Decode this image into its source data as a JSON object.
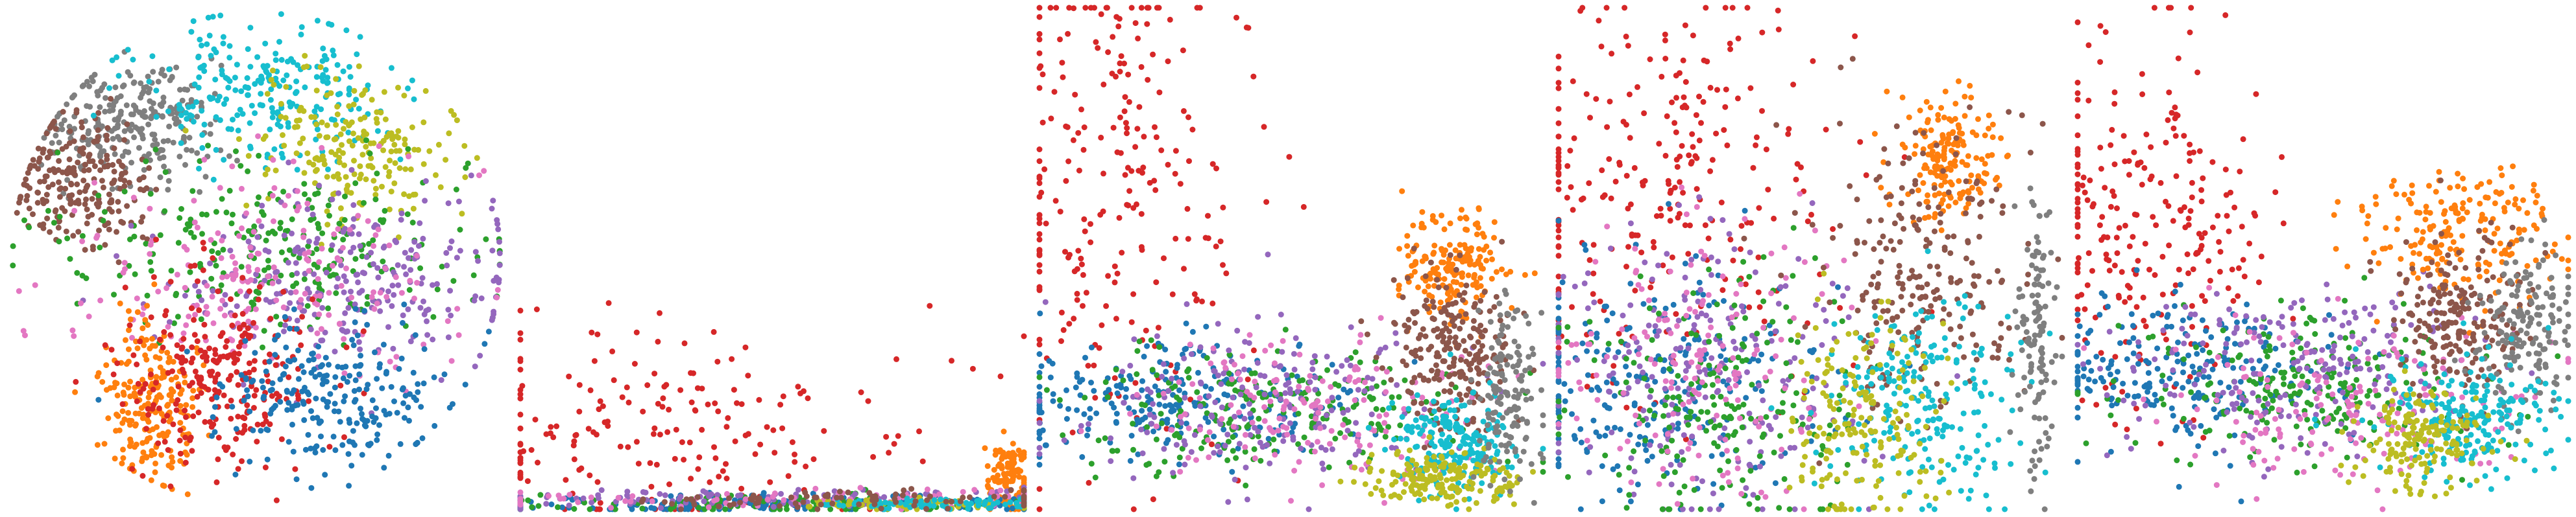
{
  "palette": {
    "blue": "#1f77b4",
    "orange": "#ff7f0e",
    "green": "#2ca02c",
    "red": "#d62728",
    "purple": "#9467bd",
    "brown": "#8c564b",
    "pink": "#e377c2",
    "gray": "#7f7f7f",
    "olive": "#bcbd22",
    "cyan": "#17becf"
  },
  "chart_data": [
    {
      "type": "scatter",
      "panel": "1",
      "axes_visible": false,
      "grid": false,
      "legend": "none",
      "xlim": [
        -1,
        1
      ],
      "ylim": [
        -1,
        1
      ],
      "series": [
        {
          "color": "#7f7f7f",
          "center": [
            -0.5,
            0.55
          ],
          "spread": [
            0.18,
            0.12
          ],
          "n": 260
        },
        {
          "color": "#8c564b",
          "center": [
            -0.72,
            0.3
          ],
          "spread": [
            0.14,
            0.12
          ],
          "n": 220
        },
        {
          "color": "#17becf",
          "center": [
            0.05,
            0.68
          ],
          "spread": [
            0.25,
            0.14
          ],
          "n": 240
        },
        {
          "color": "#bcbd22",
          "center": [
            0.4,
            0.45
          ],
          "spread": [
            0.2,
            0.14
          ],
          "n": 200
        },
        {
          "color": "#2ca02c",
          "center": [
            0.05,
            0.05
          ],
          "spread": [
            0.45,
            0.16
          ],
          "n": 260
        },
        {
          "color": "#9467bd",
          "center": [
            0.35,
            -0.1
          ],
          "spread": [
            0.35,
            0.18
          ],
          "n": 260
        },
        {
          "color": "#e377c2",
          "center": [
            0.0,
            -0.05
          ],
          "spread": [
            0.4,
            0.2
          ],
          "n": 200
        },
        {
          "color": "#ff7f0e",
          "center": [
            -0.42,
            -0.58
          ],
          "spread": [
            0.1,
            0.18
          ],
          "n": 220
        },
        {
          "color": "#d62728",
          "center": [
            -0.15,
            -0.45
          ],
          "spread": [
            0.22,
            0.2
          ],
          "n": 260
        },
        {
          "color": "#1f77b4",
          "center": [
            0.3,
            -0.55
          ],
          "spread": [
            0.25,
            0.14
          ],
          "n": 240
        }
      ]
    },
    {
      "type": "scatter",
      "panel": "2",
      "axes_visible": false,
      "grid": false,
      "legend": "none",
      "xlim": [
        0,
        1
      ],
      "ylim": [
        0,
        1
      ],
      "series": [
        {
          "color": "#d62728",
          "center": [
            0.3,
            0.15
          ],
          "spread": [
            0.25,
            0.12
          ],
          "n": 200
        },
        {
          "color": "#ff7f0e",
          "center": [
            0.97,
            0.06
          ],
          "spread": [
            0.02,
            0.04
          ],
          "n": 120
        },
        {
          "color": "#1f77b4",
          "center": [
            0.5,
            0.01
          ],
          "spread": [
            0.45,
            0.01
          ],
          "n": 200
        },
        {
          "color": "#2ca02c",
          "center": [
            0.55,
            0.01
          ],
          "spread": [
            0.4,
            0.01
          ],
          "n": 120
        },
        {
          "color": "#9467bd",
          "center": [
            0.55,
            0.02
          ],
          "spread": [
            0.4,
            0.01
          ],
          "n": 120
        },
        {
          "color": "#e377c2",
          "center": [
            0.5,
            0.02
          ],
          "spread": [
            0.4,
            0.01
          ],
          "n": 80
        },
        {
          "color": "#bcbd22",
          "center": [
            0.8,
            0.01
          ],
          "spread": [
            0.15,
            0.005
          ],
          "n": 80
        },
        {
          "color": "#17becf",
          "center": [
            0.85,
            0.01
          ],
          "spread": [
            0.12,
            0.005
          ],
          "n": 80
        },
        {
          "color": "#8c564b",
          "center": [
            0.7,
            0.02
          ],
          "spread": [
            0.25,
            0.01
          ],
          "n": 80
        }
      ]
    },
    {
      "type": "scatter",
      "panel": "3",
      "axes_visible": false,
      "grid": false,
      "legend": "none",
      "xlim": [
        0,
        1
      ],
      "ylim": [
        0,
        1
      ],
      "series": [
        {
          "color": "#d62728",
          "center": [
            0.15,
            0.6
          ],
          "spread": [
            0.14,
            0.25
          ],
          "n": 240
        },
        {
          "color": "#1f77b4",
          "center": [
            0.25,
            0.22
          ],
          "spread": [
            0.18,
            0.06
          ],
          "n": 240
        },
        {
          "color": "#2ca02c",
          "center": [
            0.45,
            0.2
          ],
          "spread": [
            0.2,
            0.06
          ],
          "n": 220
        },
        {
          "color": "#9467bd",
          "center": [
            0.45,
            0.22
          ],
          "spread": [
            0.2,
            0.08
          ],
          "n": 200
        },
        {
          "color": "#e377c2",
          "center": [
            0.55,
            0.2
          ],
          "spread": [
            0.18,
            0.08
          ],
          "n": 160
        },
        {
          "color": "#ff7f0e",
          "center": [
            0.82,
            0.48
          ],
          "spread": [
            0.05,
            0.05
          ],
          "n": 180
        },
        {
          "color": "#8c564b",
          "center": [
            0.82,
            0.32
          ],
          "spread": [
            0.06,
            0.08
          ],
          "n": 220
        },
        {
          "color": "#17becf",
          "center": [
            0.82,
            0.13
          ],
          "spread": [
            0.06,
            0.05
          ],
          "n": 200
        },
        {
          "color": "#bcbd22",
          "center": [
            0.8,
            0.06
          ],
          "spread": [
            0.08,
            0.03
          ],
          "n": 180
        },
        {
          "color": "#7f7f7f",
          "center": [
            0.93,
            0.25
          ],
          "spread": [
            0.03,
            0.1
          ],
          "n": 140
        }
      ]
    },
    {
      "type": "scatter",
      "panel": "4",
      "axes_visible": false,
      "grid": false,
      "legend": "none",
      "xlim": [
        0,
        1
      ],
      "ylim": [
        0,
        1
      ],
      "series": [
        {
          "color": "#d62728",
          "center": [
            0.2,
            0.65
          ],
          "spread": [
            0.18,
            0.2
          ],
          "n": 260
        },
        {
          "color": "#1f77b4",
          "center": [
            0.18,
            0.25
          ],
          "spread": [
            0.16,
            0.12
          ],
          "n": 240
        },
        {
          "color": "#9467bd",
          "center": [
            0.3,
            0.25
          ],
          "spread": [
            0.16,
            0.14
          ],
          "n": 220
        },
        {
          "color": "#2ca02c",
          "center": [
            0.32,
            0.22
          ],
          "spread": [
            0.14,
            0.12
          ],
          "n": 200
        },
        {
          "color": "#e377c2",
          "center": [
            0.28,
            0.3
          ],
          "spread": [
            0.14,
            0.14
          ],
          "n": 160
        },
        {
          "color": "#ff7f0e",
          "center": [
            0.78,
            0.7
          ],
          "spread": [
            0.05,
            0.06
          ],
          "n": 180
        },
        {
          "color": "#8c564b",
          "center": [
            0.72,
            0.48
          ],
          "spread": [
            0.1,
            0.14
          ],
          "n": 240
        },
        {
          "color": "#17becf",
          "center": [
            0.72,
            0.2
          ],
          "spread": [
            0.1,
            0.1
          ],
          "n": 220
        },
        {
          "color": "#bcbd22",
          "center": [
            0.6,
            0.2
          ],
          "spread": [
            0.08,
            0.12
          ],
          "n": 180
        },
        {
          "color": "#7f7f7f",
          "center": [
            0.95,
            0.35
          ],
          "spread": [
            0.02,
            0.15
          ],
          "n": 120
        }
      ]
    },
    {
      "type": "scatter",
      "panel": "5",
      "axes_visible": false,
      "grid": false,
      "legend": "none",
      "xlim": [
        0,
        1
      ],
      "ylim": [
        0,
        1
      ],
      "series": [
        {
          "color": "#d62728",
          "center": [
            0.15,
            0.58
          ],
          "spread": [
            0.12,
            0.18
          ],
          "n": 240
        },
        {
          "color": "#1f77b4",
          "center": [
            0.22,
            0.28
          ],
          "spread": [
            0.16,
            0.07
          ],
          "n": 220
        },
        {
          "color": "#2ca02c",
          "center": [
            0.45,
            0.25
          ],
          "spread": [
            0.18,
            0.07
          ],
          "n": 220
        },
        {
          "color": "#9467bd",
          "center": [
            0.45,
            0.28
          ],
          "spread": [
            0.18,
            0.08
          ],
          "n": 220
        },
        {
          "color": "#e377c2",
          "center": [
            0.55,
            0.22
          ],
          "spread": [
            0.18,
            0.08
          ],
          "n": 160
        },
        {
          "color": "#ff7f0e",
          "center": [
            0.78,
            0.55
          ],
          "spread": [
            0.1,
            0.07
          ],
          "n": 200
        },
        {
          "color": "#8c564b",
          "center": [
            0.78,
            0.38
          ],
          "spread": [
            0.07,
            0.08
          ],
          "n": 200
        },
        {
          "color": "#7f7f7f",
          "center": [
            0.92,
            0.36
          ],
          "spread": [
            0.05,
            0.08
          ],
          "n": 160
        },
        {
          "color": "#17becf",
          "center": [
            0.8,
            0.18
          ],
          "spread": [
            0.09,
            0.06
          ],
          "n": 200
        },
        {
          "color": "#bcbd22",
          "center": [
            0.7,
            0.14
          ],
          "spread": [
            0.07,
            0.05
          ],
          "n": 160
        }
      ]
    }
  ]
}
